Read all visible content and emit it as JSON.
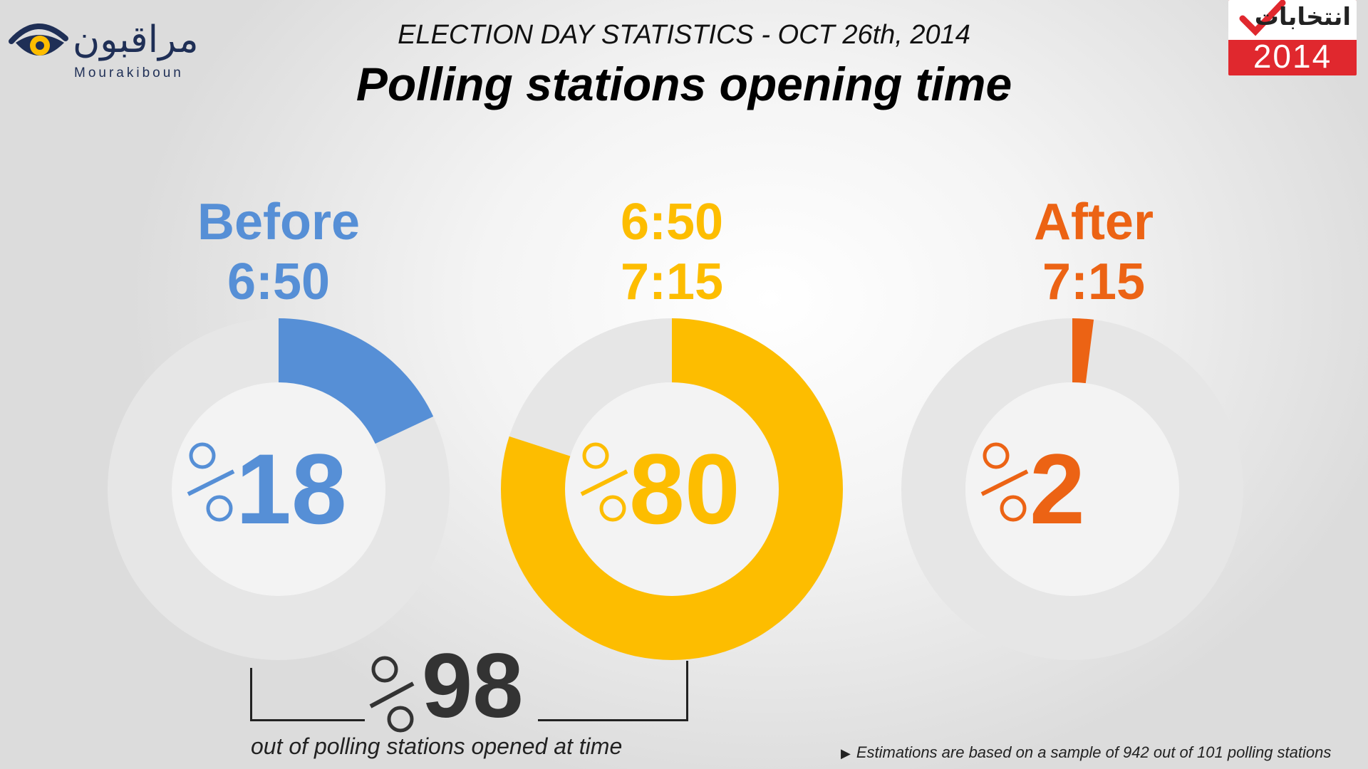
{
  "header": {
    "subtitle": "ELECTION DAY STATISTICS - OCT 26th, 2014",
    "title": "Polling stations opening time"
  },
  "logos": {
    "left": {
      "arabic": "مراقبون",
      "latin": "Mourakiboun"
    },
    "right": {
      "arabic": "انتخابات",
      "year": "2014"
    }
  },
  "chart_data": {
    "type": "pie",
    "subtype": "donut",
    "categories": [
      {
        "label_line1": "Before",
        "label_line2": "6:50",
        "value": 18,
        "color": "#568fd6"
      },
      {
        "label_line1": "6:50",
        "label_line2": "7:15",
        "value": 80,
        "color": "#fdbd00"
      },
      {
        "label_line1": "After",
        "label_line2": "7:15",
        "value": 2,
        "color": "#ec6314"
      }
    ],
    "value_unit": "%",
    "track_color": "#e6e6e6",
    "total": {
      "value": 98,
      "unit": "%",
      "caption": "out of polling stations opened at time"
    }
  },
  "footnote": "Estimations are based on a sample of 942 out of 101 polling stations"
}
